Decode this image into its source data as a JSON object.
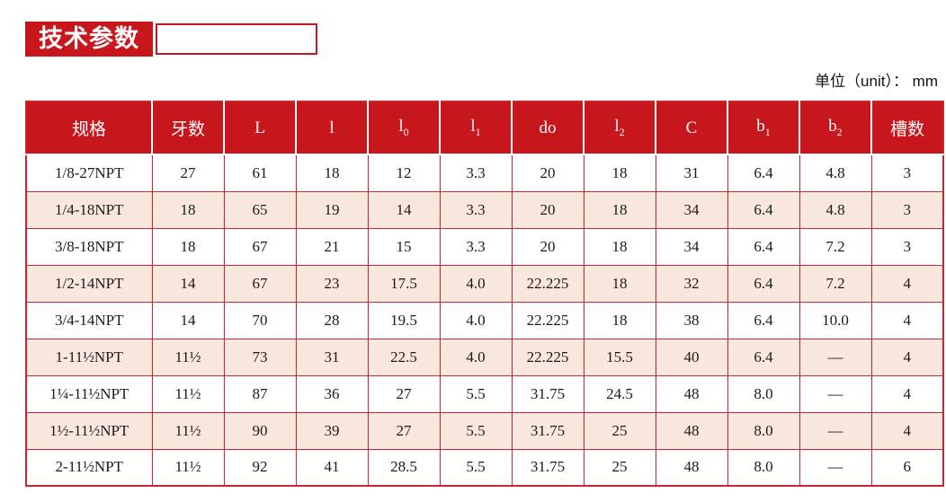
{
  "page": {
    "title": "技术参数",
    "unit_label": "单位（unit）： mm"
  },
  "colors": {
    "brand_red": "#C8161D",
    "table_border": "#C9262D",
    "row_stripe": "#FAE7DD",
    "cell_text": "#1A1A1A"
  },
  "table": {
    "headers": [
      "规格",
      "牙数",
      "L",
      "l",
      "l_0",
      "l_1",
      "do",
      "l_2",
      "C",
      "b_1",
      "b_2",
      "槽数"
    ],
    "rows": [
      [
        "1/8-27NPT",
        "27",
        "61",
        "18",
        "12",
        "3.3",
        "20",
        "18",
        "31",
        "6.4",
        "4.8",
        "3"
      ],
      [
        "1/4-18NPT",
        "18",
        "65",
        "19",
        "14",
        "3.3",
        "20",
        "18",
        "34",
        "6.4",
        "4.8",
        "3"
      ],
      [
        "3/8-18NPT",
        "18",
        "67",
        "21",
        "15",
        "3.3",
        "20",
        "18",
        "34",
        "6.4",
        "7.2",
        "3"
      ],
      [
        "1/2-14NPT",
        "14",
        "67",
        "23",
        "17.5",
        "4.0",
        "22.225",
        "18",
        "32",
        "6.4",
        "7.2",
        "4"
      ],
      [
        "3/4-14NPT",
        "14",
        "70",
        "28",
        "19.5",
        "4.0",
        "22.225",
        "18",
        "38",
        "6.4",
        "10.0",
        "4"
      ],
      [
        "1-11½NPT",
        "11½",
        "73",
        "31",
        "22.5",
        "4.0",
        "22.225",
        "15.5",
        "40",
        "6.4",
        "—",
        "4"
      ],
      [
        "1¼-11½NPT",
        "11½",
        "87",
        "36",
        "27",
        "5.5",
        "31.75",
        "24.5",
        "48",
        "8.0",
        "—",
        "4"
      ],
      [
        "1½-11½NPT",
        "11½",
        "90",
        "39",
        "27",
        "5.5",
        "31.75",
        "25",
        "48",
        "8.0",
        "—",
        "4"
      ],
      [
        "2-11½NPT",
        "11½",
        "92",
        "41",
        "28.5",
        "5.5",
        "31.75",
        "25",
        "48",
        "8.0",
        "—",
        "6"
      ]
    ]
  }
}
